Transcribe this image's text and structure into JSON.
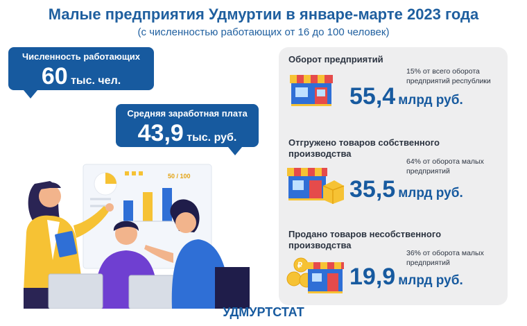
{
  "header": {
    "title": "Малые предприятия Удмуртии в январе-марте 2023 года",
    "subtitle": "(с численностью работающих от 16 до 100 человек)"
  },
  "employees": {
    "label": "Численность работающих",
    "value": "60",
    "unit": "тыс. чел."
  },
  "salary": {
    "label": "Средняя заработная плата",
    "value": "43,9",
    "unit": "тыс. руб."
  },
  "illustration": {
    "board_text": "50 / 100"
  },
  "panel": {
    "turnover": {
      "title": "Оборот предприятий",
      "note": "15% от всего оборота предприятий республики",
      "value": "55,4",
      "unit": "млрд руб."
    },
    "own_goods": {
      "title": "Отгружено товаров собственного производства",
      "note": "64% от оборота малых предприятий",
      "value": "35,5",
      "unit": "млрд руб."
    },
    "other_goods": {
      "title": "Продано товаров несобственного производства",
      "note": "36% от оборота малых предприятий",
      "value": "19,9",
      "unit": "млрд руб."
    }
  },
  "footer": {
    "brand": "УДМУРТСТАТ"
  },
  "colors": {
    "primary": "#175a9f",
    "title": "#1f5f9f",
    "panel_bg": "#eeeeef",
    "accent_yellow": "#f6c234",
    "accent_blue": "#2f6fd6"
  }
}
